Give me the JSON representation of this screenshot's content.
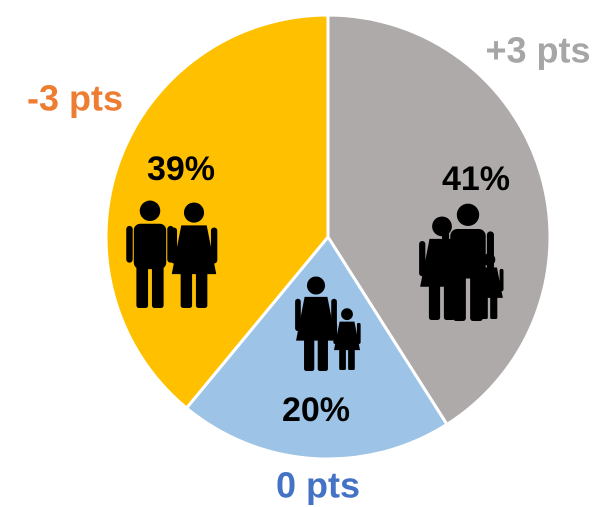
{
  "chart_data": {
    "type": "pie",
    "values": [
      41,
      20,
      39
    ],
    "value_labels": [
      "41%",
      "20%",
      "39%"
    ],
    "colors": [
      "#aeaaaa",
      "#9dc3e6",
      "#ffc000"
    ],
    "annotations": [
      "+3 pts",
      "0 pts",
      "-3 pts"
    ],
    "annotation_colors": [
      "#a6a6a6",
      "#4472c4",
      "#ed7d31"
    ]
  }
}
